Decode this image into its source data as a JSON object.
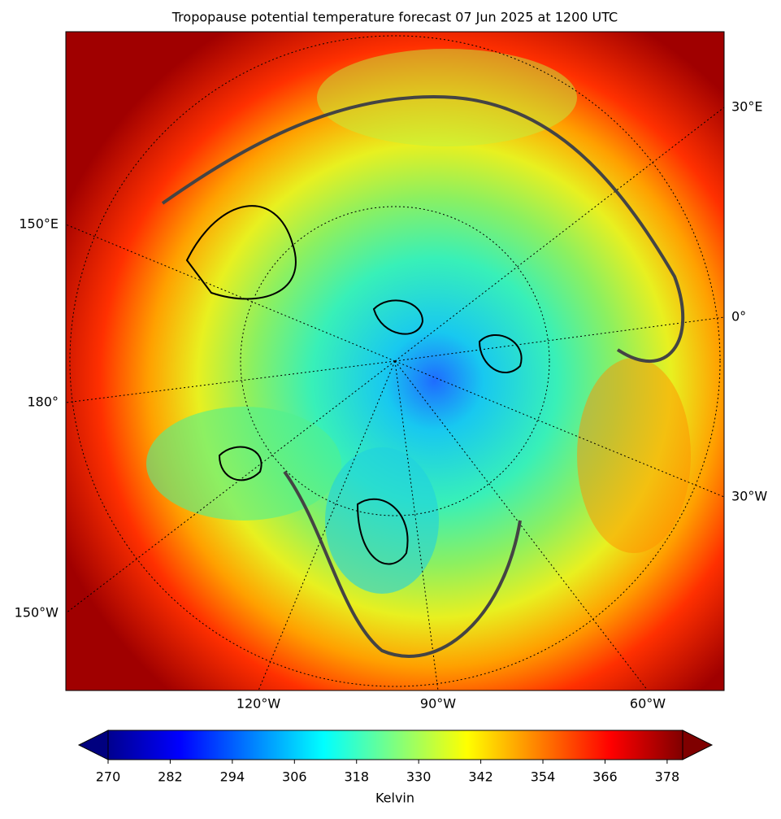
{
  "title": "Tropopause potential temperature forecast 07 Jun 2025 at 1200 UTC",
  "map": {
    "lon_labels": [
      "30°E",
      "0°",
      "30°W",
      "150°E",
      "180°",
      "150°W",
      "120°W",
      "90°W",
      "60°W"
    ]
  },
  "colorbar": {
    "label": "Kelvin",
    "lim": [
      270,
      381
    ],
    "ticks": [
      270,
      282,
      294,
      306,
      318,
      330,
      342,
      354,
      366,
      378
    ],
    "colormap": "jet",
    "extend": "both"
  }
}
